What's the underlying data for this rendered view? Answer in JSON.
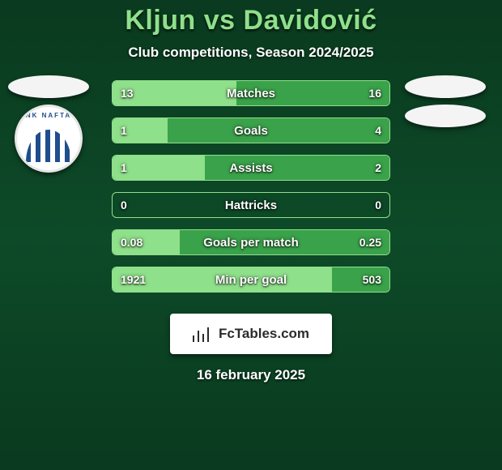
{
  "background": {
    "top": "#0a3a1f",
    "mid": "#0d4a28",
    "bottom": "#0a3a1f"
  },
  "title": {
    "text": "Kljun vs Davidović",
    "color": "#8fe08a",
    "fontsize": 34
  },
  "subtitle": {
    "text": "Club competitions, Season 2024/2025",
    "color": "#ffffff",
    "fontsize": 17
  },
  "colors": {
    "left_fill": "#8fe08a",
    "right_fill": "#3aa24a",
    "border": "#8fe08a",
    "text": "#ffffff"
  },
  "bars": [
    {
      "label": "Matches",
      "left": "13",
      "right": "16",
      "left_pct": 44.8,
      "right_pct": 55.2
    },
    {
      "label": "Goals",
      "left": "1",
      "right": "4",
      "left_pct": 20.0,
      "right_pct": 80.0
    },
    {
      "label": "Assists",
      "left": "1",
      "right": "2",
      "left_pct": 33.3,
      "right_pct": 66.7
    },
    {
      "label": "Hattricks",
      "left": "0",
      "right": "0",
      "left_pct": 0.0,
      "right_pct": 0.0
    },
    {
      "label": "Goals per match",
      "left": "0.08",
      "right": "0.25",
      "left_pct": 24.2,
      "right_pct": 75.8
    },
    {
      "label": "Min per goal",
      "left": "1921",
      "right": "503",
      "left_pct": 79.3,
      "right_pct": 20.7
    }
  ],
  "left_team": {
    "has_ellipse": true,
    "has_circle": true,
    "circle_text": "NK NAFTA"
  },
  "right_team": {
    "has_ellipse_count": 2
  },
  "footer": {
    "brand": "FcTables.com",
    "date": "16 february 2025"
  }
}
